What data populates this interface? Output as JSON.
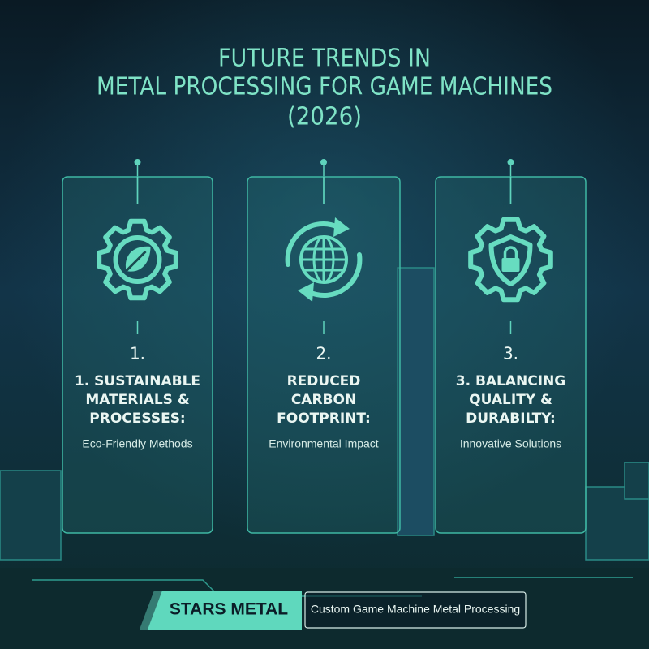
{
  "header": {
    "title_lines": [
      "FUTURE TRENDS IN",
      "METAL PROCESSING FOR GAME MACHINES",
      "(2026)"
    ]
  },
  "cards": [
    {
      "number": "1.",
      "heading_lines": [
        "1. SUSTAINABLE",
        "MATERIALS &",
        "PROCESSES:"
      ],
      "subtitle": "Eco-Friendly Methods"
    },
    {
      "number": "2.",
      "heading_lines": [
        "REDUCED",
        "CARBON",
        "FOOTPRINT:"
      ],
      "subtitle": "Environmental Impact"
    },
    {
      "number": "3.",
      "heading_lines": [
        "3. BALANCING",
        "QUALITY &",
        "DURABILTY:"
      ],
      "subtitle": "Innovative Solutions"
    }
  ],
  "footer": {
    "brand": "STARS METAL",
    "tagline": "Custom Game Machine Metal Processing"
  }
}
